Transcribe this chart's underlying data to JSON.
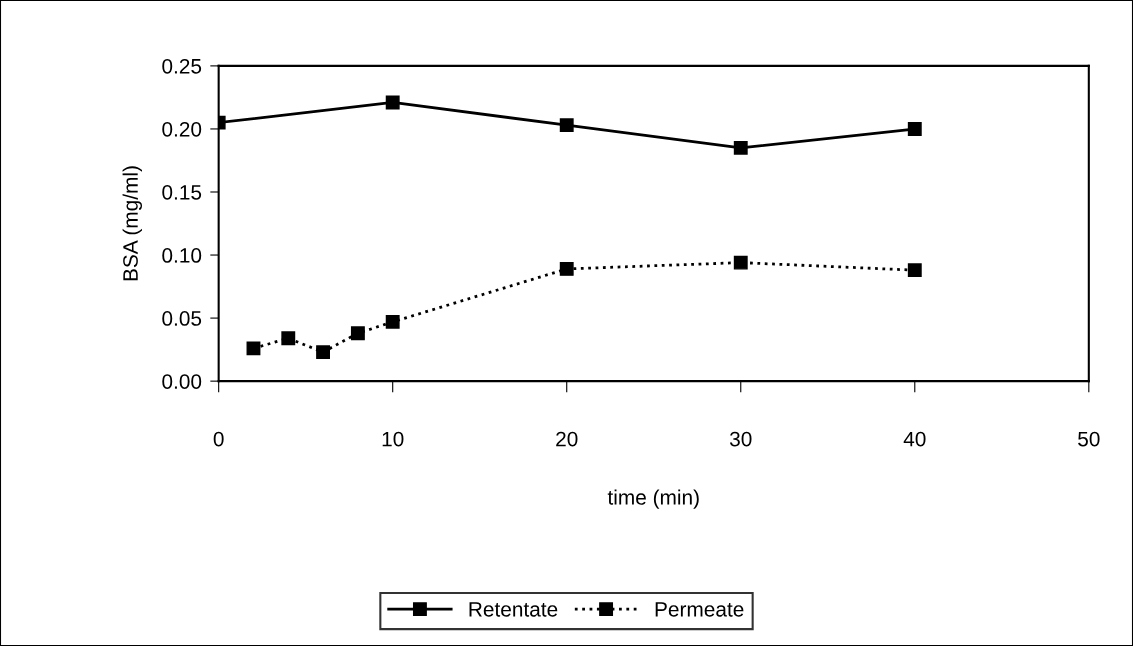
{
  "chart_data": {
    "type": "line",
    "xlabel": "time (min)",
    "ylabel": "BSA (mg/ml)",
    "xlim": [
      0,
      50
    ],
    "xticks": [
      0,
      10,
      20,
      30,
      40,
      50
    ],
    "ylim": [
      0,
      0.25
    ],
    "yticks": [
      {
        "value": 0,
        "label": "0.00"
      },
      {
        "value": 0.05,
        "label": "0.05"
      },
      {
        "value": 0.1,
        "label": "0.10"
      },
      {
        "value": 0.15,
        "label": "0.15"
      },
      {
        "value": 0.2,
        "label": "0.20"
      },
      {
        "value": 0.25,
        "label": "0.25"
      }
    ],
    "grid": false,
    "legend": "bottom",
    "marker": "square",
    "series": [
      {
        "name": "Retentate",
        "color": "#000000",
        "line_style": "solid",
        "x": [
          0,
          10,
          20,
          30,
          40
        ],
        "values": [
          0.205,
          0.221,
          0.203,
          0.185,
          0.2
        ]
      },
      {
        "name": "Permeate",
        "color": "#000000",
        "line_style": "dotted",
        "x": [
          2,
          4,
          6,
          8,
          10,
          20,
          30,
          40
        ],
        "values": [
          0.026,
          0.034,
          0.023,
          0.038,
          0.047,
          0.089,
          0.094,
          0.088
        ]
      }
    ]
  }
}
